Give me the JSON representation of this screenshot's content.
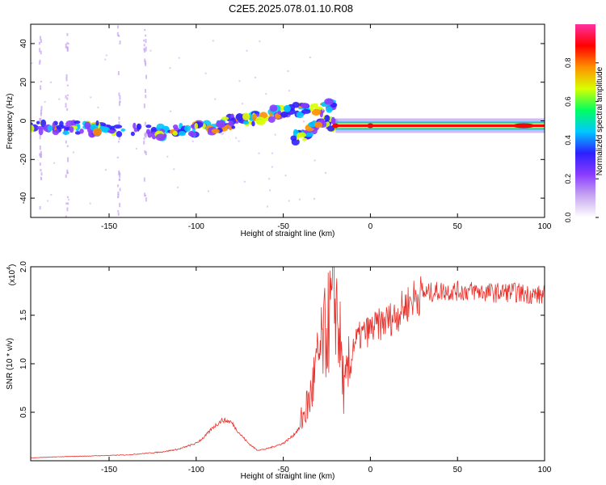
{
  "title": "C2E5.2025.078.01.10.R08",
  "chart_data": [
    {
      "type": "heatmap",
      "xlabel": "Height of straight line (km)",
      "ylabel": "Frequency (Hz)",
      "xlim": [
        -195,
        100
      ],
      "ylim": [
        -50,
        50
      ],
      "x_ticks": [
        -150,
        -100,
        -50,
        0,
        50,
        100
      ],
      "y_ticks": [
        -40,
        -20,
        0,
        20,
        40
      ],
      "colorbar": {
        "label": "Normalized spectral amplitude",
        "ticks": [
          "0.0",
          "0.2",
          "0.4",
          "0.6",
          "0.8"
        ],
        "range": [
          0,
          1
        ],
        "colors": [
          "#ffffff",
          "#c8a8f0",
          "#8a3cff",
          "#2c20ff",
          "#00c8ff",
          "#00ff60",
          "#d8ff00",
          "#ff9000",
          "#ff0000",
          "#ff30a0"
        ]
      },
      "ridges": [
        {
          "name": "main ridge",
          "x": [
            -195,
            -170,
            -150,
            -130,
            -120,
            -110,
            -100,
            -90,
            -80,
            -70,
            -60,
            -50,
            -40,
            -30,
            -25,
            -20
          ],
          "y": [
            -3,
            -3.5,
            -4,
            -5,
            -6,
            -5,
            -4,
            -3,
            -1,
            1,
            3,
            5,
            6,
            6,
            7,
            11
          ]
        },
        {
          "name": "lower ridge",
          "x": [
            -45,
            -40,
            -35,
            -30,
            -25,
            -20
          ],
          "y": [
            -10,
            -8,
            -5,
            -3,
            -1,
            -2
          ]
        },
        {
          "name": "constant tone",
          "x": [
            -20,
            0,
            20,
            50,
            75,
            85,
            100
          ],
          "y": [
            -2.5,
            -2.5,
            -2.5,
            -2.5,
            -2.5,
            -3,
            -3
          ]
        }
      ],
      "vertical_streaks_x": [
        -190,
        -175,
        -145,
        -130
      ]
    },
    {
      "type": "line",
      "xlabel": "Height of straight line (km)",
      "ylabel": "SNR (10 * v/v)",
      "scale_label_base": "(x10",
      "scale_label_exp": "4",
      "scale_label_close": ")",
      "xlim": [
        -195,
        100
      ],
      "ylim": [
        0,
        20000
      ],
      "x_ticks": [
        -150,
        -100,
        -50,
        0,
        50,
        100
      ],
      "y_ticks": [
        5000,
        10000,
        15000,
        20000
      ],
      "y_tick_labels": [
        "0.5",
        "1.0",
        "1.5",
        "2.0"
      ],
      "color": "#e8302a",
      "envelope": {
        "x": [
          -195,
          -180,
          -160,
          -140,
          -120,
          -110,
          -100,
          -95,
          -90,
          -85,
          -80,
          -75,
          -70,
          -65,
          -60,
          -55,
          -50,
          -45,
          -40,
          -35,
          -30,
          -25,
          -20,
          -17,
          -15,
          -12,
          -10,
          -5,
          0,
          5,
          10,
          15,
          20,
          25,
          30,
          40,
          50,
          60,
          70,
          80,
          90,
          100
        ],
        "y": [
          300,
          400,
          500,
          600,
          900,
          1200,
          1800,
          2500,
          3500,
          4200,
          4000,
          2800,
          1800,
          1100,
          1200,
          1500,
          1800,
          2500,
          3500,
          5500,
          9000,
          12000,
          15000,
          10000,
          6000,
          8500,
          12000,
          13000,
          13500,
          14000,
          14500,
          15000,
          16000,
          16800,
          17200,
          17500,
          17500,
          17500,
          17300,
          17400,
          17200,
          17000
        ]
      }
    }
  ]
}
